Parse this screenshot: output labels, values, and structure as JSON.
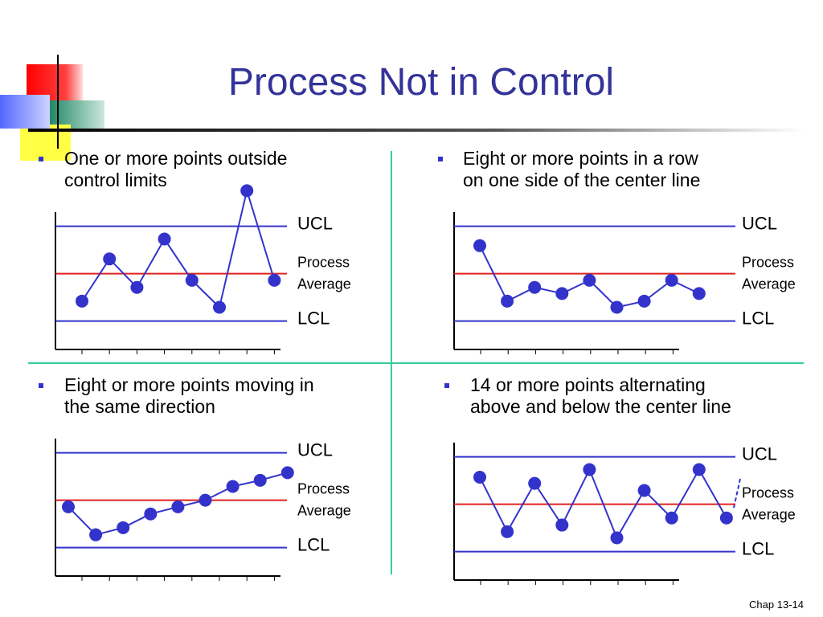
{
  "title": "Process Not in Control",
  "footer": "Chap 13-14",
  "chart_data": [
    {
      "type": "line",
      "subtitle": [
        "One or more points outside",
        "control limits"
      ],
      "categories": [
        null,
        null,
        null,
        null,
        null,
        null,
        null,
        null
      ],
      "values": [
        -0.58,
        0.31,
        -0.29,
        0.73,
        -0.14,
        -0.71,
        1.75,
        -0.14
      ],
      "ylim": [
        -1.6,
        1.8
      ],
      "color": "#3333cc",
      "ucl": {
        "label": "UCL",
        "value": 1
      },
      "center": {
        "label": [
          "Process",
          "Average"
        ],
        "value": 0
      },
      "lcl": {
        "label": "LCL",
        "value": -1
      }
    },
    {
      "type": "line",
      "subtitle": [
        "Eight or more points in a row",
        "on one side of the center line"
      ],
      "categories": [
        null,
        null,
        null,
        null,
        null,
        null,
        null,
        null,
        null
      ],
      "values": [
        0.59,
        -0.58,
        -0.29,
        -0.42,
        -0.14,
        -0.71,
        -0.58,
        -0.14,
        -0.42
      ],
      "ylim": [
        -1.6,
        1.8
      ],
      "color": "#3333cc",
      "ucl": {
        "label": "UCL",
        "value": 1
      },
      "center": {
        "label": [
          "Process",
          "Average"
        ],
        "value": 0
      },
      "lcl": {
        "label": "LCL",
        "value": -1
      }
    },
    {
      "type": "line",
      "subtitle": [
        "Eight or more points moving in",
        "the same direction"
      ],
      "categories": [
        null,
        null,
        null,
        null,
        null,
        null,
        null,
        null,
        null
      ],
      "values": [
        -0.14,
        -0.73,
        -0.58,
        -0.29,
        -0.14,
        0,
        0.29,
        0.42,
        0.58
      ],
      "ylim": [
        -1.6,
        1.8
      ],
      "color": "#3333cc",
      "ucl": {
        "label": "UCL",
        "value": 1
      },
      "center": {
        "label": [
          "Process",
          "Average"
        ],
        "value": 0
      },
      "lcl": {
        "label": "LCL",
        "value": -1
      }
    },
    {
      "type": "line",
      "subtitle": [
        "14 or more points alternating",
        "above and below the center line"
      ],
      "categories": [
        null,
        null,
        null,
        null,
        null,
        null,
        null,
        null,
        null,
        null
      ],
      "values": [
        0.57,
        -0.58,
        0.44,
        -0.44,
        0.73,
        -0.71,
        0.29,
        -0.29,
        0.73,
        -0.29
      ],
      "ylim": [
        -1.6,
        1.8
      ],
      "color": "#3333cc",
      "ucl": {
        "label": "UCL",
        "value": 1
      },
      "center": {
        "label": [
          "Process",
          "Average"
        ],
        "value": 0
      },
      "lcl": {
        "label": "LCL",
        "value": -1
      }
    }
  ]
}
